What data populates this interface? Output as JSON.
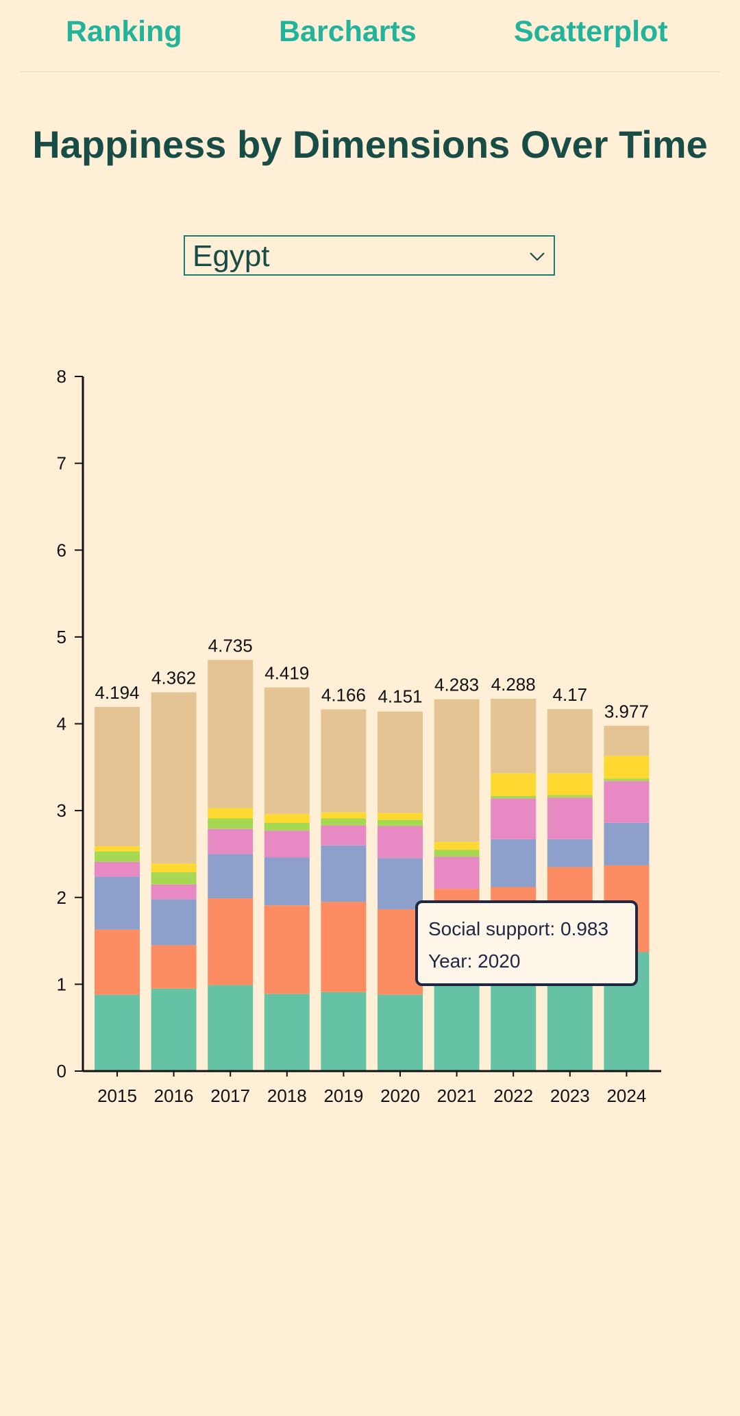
{
  "nav": {
    "items": [
      {
        "label": "Ranking"
      },
      {
        "label": "Barcharts"
      },
      {
        "label": "Scatterplot"
      }
    ]
  },
  "page_title": "Happiness by Dimensions Over Time",
  "country_select": {
    "selected": "Egypt"
  },
  "tooltip": {
    "line1": "Social support: 0.983",
    "line2": "Year: 2020"
  },
  "colors": {
    "background": "#feefd6",
    "nav_link": "#22b39b",
    "title": "#174d46",
    "segments": [
      "#66c2a5",
      "#fc8d62",
      "#8da0cb",
      "#e78ac3",
      "#a6d854",
      "#ffd92f",
      "#e5c494"
    ]
  },
  "chart_data": {
    "type": "bar",
    "stacked": true,
    "categories": [
      "2015",
      "2016",
      "2017",
      "2018",
      "2019",
      "2020",
      "2021",
      "2022",
      "2023",
      "2024"
    ],
    "totals": [
      4.194,
      4.362,
      4.735,
      4.419,
      4.166,
      4.151,
      4.283,
      4.288,
      4.17,
      3.977
    ],
    "total_labels": [
      "4.194",
      "4.362",
      "4.735",
      "4.419",
      "4.166",
      "4.151",
      "4.283",
      "4.288",
      "4.17",
      "3.977"
    ],
    "ylim": [
      0,
      8
    ],
    "yticks": [
      0,
      1,
      2,
      3,
      4,
      5,
      6,
      7,
      8
    ],
    "series": [
      {
        "values": [
          0.88,
          0.95,
          0.99,
          0.89,
          0.91,
          0.88,
          1.15,
          1.2,
          1.24,
          1.37
        ]
      },
      {
        "values": [
          0.75,
          0.5,
          1.0,
          1.02,
          1.04,
          0.983,
          0.95,
          0.92,
          1.11,
          1.0
        ]
      },
      {
        "values": [
          0.61,
          0.53,
          0.51,
          0.55,
          0.65,
          0.59,
          0.0,
          0.55,
          0.32,
          0.49
        ]
      },
      {
        "values": [
          0.17,
          0.17,
          0.29,
          0.31,
          0.23,
          0.37,
          0.37,
          0.47,
          0.48,
          0.48
        ]
      },
      {
        "values": [
          0.12,
          0.14,
          0.12,
          0.09,
          0.08,
          0.07,
          0.08,
          0.03,
          0.03,
          0.03
        ]
      },
      {
        "values": [
          0.06,
          0.1,
          0.12,
          0.1,
          0.07,
          0.08,
          0.09,
          0.26,
          0.25,
          0.26
        ]
      },
      {
        "values": [
          1.604,
          1.972,
          1.705,
          1.459,
          1.186,
          1.168,
          1.643,
          0.858,
          0.74,
          0.347
        ]
      }
    ]
  }
}
